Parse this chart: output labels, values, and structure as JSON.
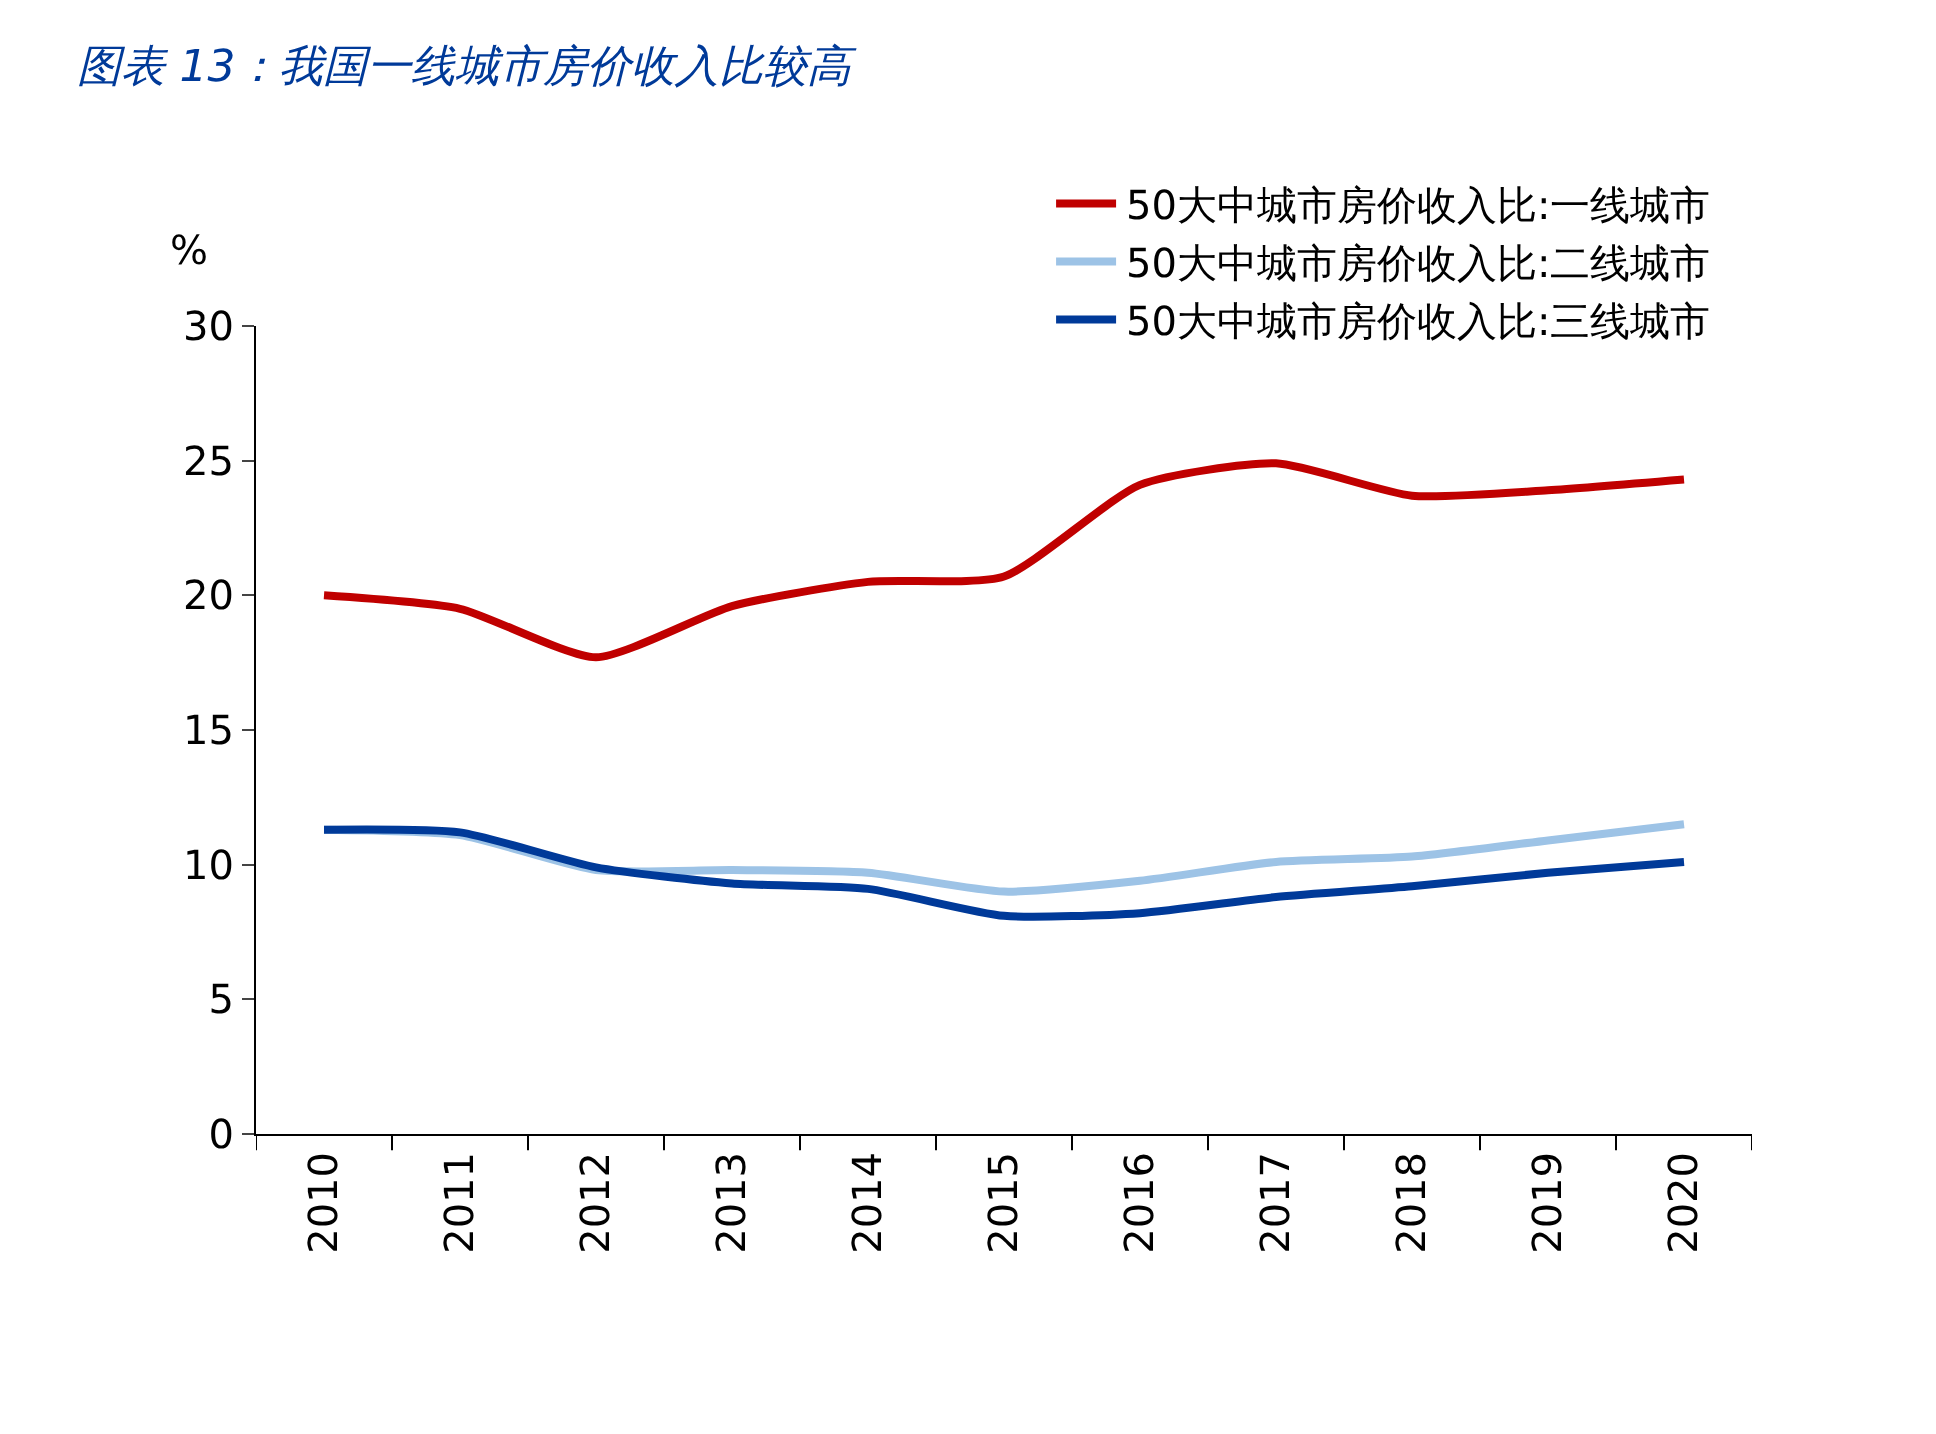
{
  "chart_data": {
    "type": "line",
    "title": "图表 13：我国一线城市房价收入比较高",
    "ylabel": "%",
    "categories": [
      "2010",
      "2011",
      "2012",
      "2013",
      "2014",
      "2015",
      "2016",
      "2017",
      "2018",
      "2019",
      "2020"
    ],
    "series": [
      {
        "name": "50大中城市房价收入比:一线城市",
        "color": "#c00000",
        "values": [
          20.0,
          19.5,
          17.7,
          19.6,
          20.5,
          20.7,
          24.1,
          24.9,
          23.7,
          23.9,
          24.3
        ]
      },
      {
        "name": "50大中城市房价收入比:二线城市",
        "color": "#9dc3e6",
        "values": [
          11.3,
          11.1,
          9.8,
          9.8,
          9.7,
          9.0,
          9.4,
          10.1,
          10.3,
          10.9,
          11.5
        ]
      },
      {
        "name": "50大中城市房价收入比:三线城市",
        "color": "#003a99",
        "values": [
          11.3,
          11.2,
          9.9,
          9.3,
          9.1,
          8.1,
          8.2,
          8.8,
          9.2,
          9.7,
          10.1
        ]
      }
    ],
    "ylim": [
      0,
      30
    ],
    "yticks": [
      0,
      5,
      10,
      15,
      20,
      25,
      30
    ],
    "legend": "top right",
    "marker": "none",
    "line_style": "solid"
  }
}
